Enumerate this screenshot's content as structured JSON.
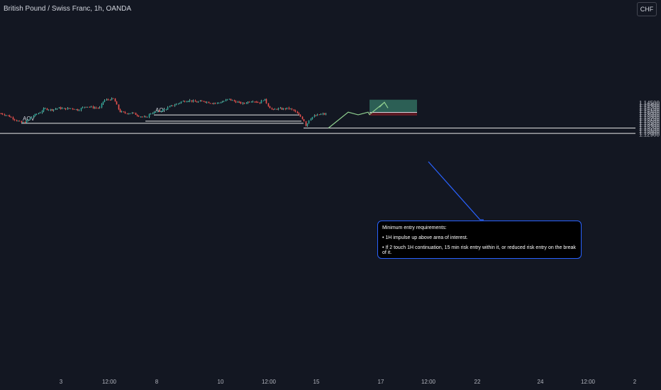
{
  "header": {
    "symbol_title": "British Pound / Swiss Franc, 1h, OANDA",
    "currency": "CHF"
  },
  "chart_data": {
    "type": "candlestick",
    "symbol": "British Pound / Swiss Franc",
    "timeframe": "1h",
    "source": "OANDA",
    "y_axis": {
      "currency": "CHF",
      "range": [
        1.1288,
        1.1457
      ],
      "ticks": [
        "1.14500",
        "1.14400",
        "1.14300",
        "1.14200",
        "1.14100",
        "1.14000",
        "1.13900",
        "1.13800",
        "1.13700",
        "1.13600",
        "1.13500",
        "1.13400",
        "1.13300",
        "1.13200",
        "1.13100",
        "1.13000",
        "1.12900"
      ]
    },
    "x_axis": {
      "ticks": [
        "3",
        "12:00",
        "8",
        "10",
        "12:00",
        "15",
        "17",
        "12:00",
        "22",
        "24",
        "12:00",
        "2"
      ]
    },
    "colors": {
      "up": "#26a69a",
      "down": "#ef5350",
      "wick_up": "#7fa896",
      "wick_down": "#b3413c",
      "background": "#131722"
    },
    "levels": [
      {
        "label": "AOI",
        "price": 1.1388
      },
      {
        "label": "",
        "price": 1.1357
      },
      {
        "label": "AOV",
        "price": 1.1346
      },
      {
        "label": "",
        "price": 1.1322
      },
      {
        "label": "",
        "price": 1.1295
      }
    ],
    "position": {
      "type": "long",
      "entry": 1.1401,
      "stop": 1.1385,
      "target": 1.1465,
      "profit_color": "#2c5f55",
      "stop_color": "#5e1a24"
    },
    "projection_path": [
      1.1322,
      1.1402,
      1.1389,
      1.1402,
      1.139,
      1.1452
    ],
    "projection_color": "#8fcf8f",
    "annotation_arrow_color": "#2962ff"
  },
  "note": {
    "title": "Minimum entry requirements:",
    "bullets": [
      "• 1H impulse up above area of interest.",
      "• If 2 touch 1H continuation, 15 min risk entry within it, or reduced risk entry on the break of it."
    ]
  }
}
